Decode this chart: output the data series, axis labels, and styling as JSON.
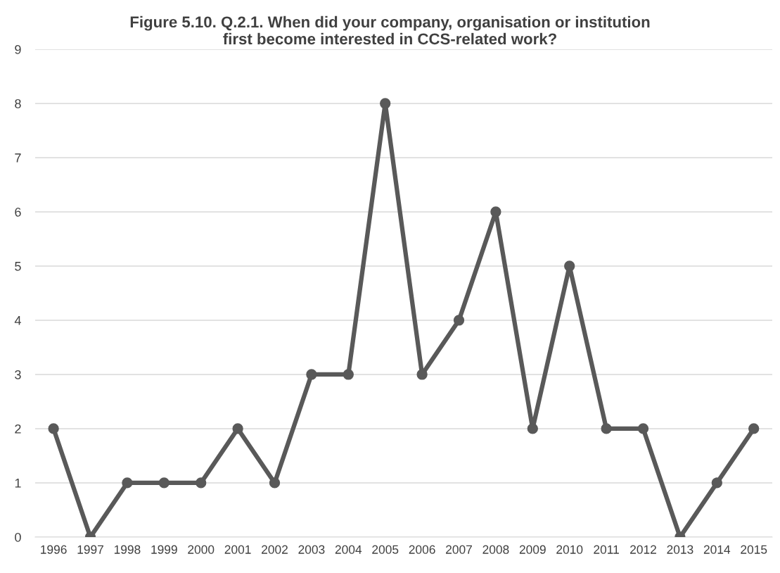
{
  "chart_data": {
    "type": "line",
    "title": "Figure 5.10. Q.2.1. When did your company, organisation or institution\nfirst become interested in CCS-related work?",
    "categories": [
      "1996",
      "1997",
      "1998",
      "1999",
      "2000",
      "2001",
      "2002",
      "2003",
      "2004",
      "2005",
      "2006",
      "2007",
      "2008",
      "2009",
      "2010",
      "2011",
      "2012",
      "2013",
      "2014",
      "2015"
    ],
    "series": [
      {
        "color": "#595959",
        "values": [
          2,
          0,
          1,
          1,
          1,
          2,
          1,
          3,
          3,
          8,
          3,
          4,
          6,
          2,
          5,
          2,
          2,
          0,
          1,
          2
        ]
      }
    ],
    "ylim": [
      0,
      9
    ],
    "yticks": [
      0,
      1,
      2,
      3,
      4,
      5,
      6,
      7,
      8,
      9
    ],
    "grid": "y",
    "marker": "circle",
    "line_style": "solid"
  }
}
